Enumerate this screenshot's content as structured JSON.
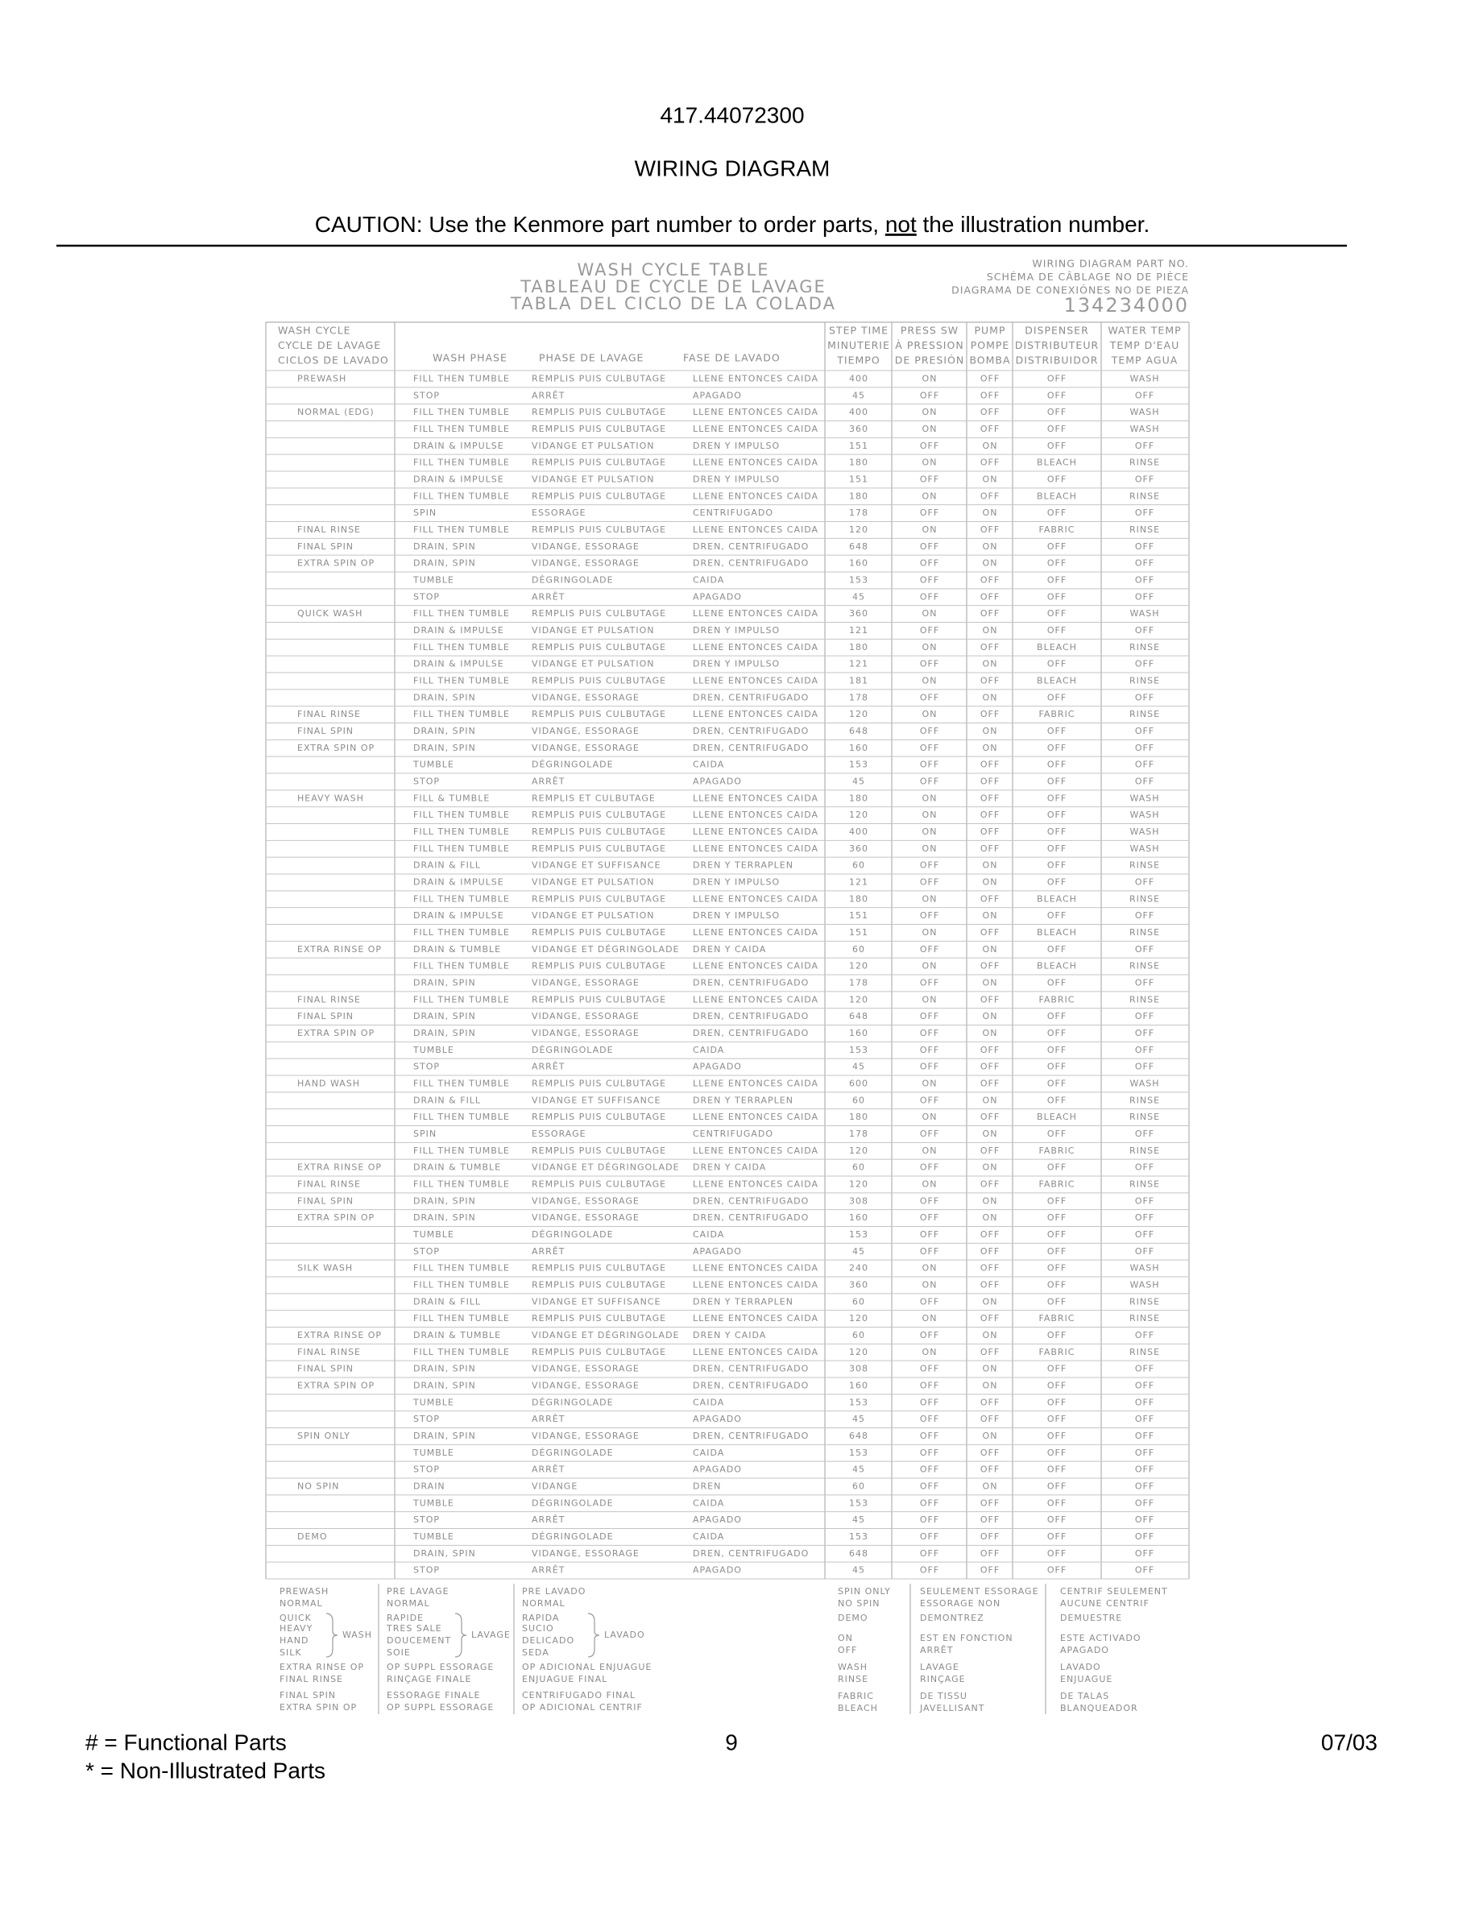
{
  "header": {
    "model": "417.44072300",
    "title": "WIRING DIAGRAM",
    "caution_before": "CAUTION: Use the Kenmore part number to order parts, ",
    "caution_emphasis": "not",
    "caution_after": " the illustration number."
  },
  "table_title": [
    "WASH CYCLE TABLE",
    "TABLEAU DE CYCLE DE LAVAGE",
    "TABLA DEL CICLO DE LA COLADA"
  ],
  "part_number": {
    "labels": [
      "WIRING DIAGRAM PART NO.",
      "SCHÉMA DE CÂBLAGE NO DE PIÈCE",
      "DIAGRAMA DE CONEXIÓNES NO DE PIEZA"
    ],
    "number": "134234000"
  },
  "table": {
    "columns": [
      [
        "WASH CYCLE",
        "CYCLE DE LAVAGE",
        "CICLOS DE LAVADO"
      ],
      [
        "WASH PHASE"
      ],
      [
        "PHASE DE LAVAGE"
      ],
      [
        "FASE DE LAVADO"
      ],
      [
        "STEP TIME",
        "MINUTERIE",
        "TIEMPO"
      ],
      [
        "PRESS SW",
        "À PRESSION",
        "DE PRESIÓN"
      ],
      [
        "PUMP",
        "POMPE",
        "BOMBA"
      ],
      [
        "DISPENSER",
        "DISTRIBUTEUR",
        "DISTRIBUIDOR"
      ],
      [
        "WATER TEMP",
        "TEMP D'EAU",
        "TEMP AGUA"
      ]
    ],
    "rows": [
      [
        "PREWASH",
        "FILL THEN TUMBLE",
        "REMPLIS PUIS CULBUTAGE",
        "LLENE ENTONCES CAIDA",
        400,
        "ON",
        "OFF",
        "OFF",
        "WASH"
      ],
      [
        null,
        "STOP",
        "ARRÊT",
        "APAGADO",
        45,
        "OFF",
        "OFF",
        "OFF",
        "OFF"
      ],
      [
        "NORMAL (EDG)",
        "FILL THEN TUMBLE",
        "REMPLIS PUIS CULBUTAGE",
        "LLENE ENTONCES CAIDA",
        400,
        "ON",
        "OFF",
        "OFF",
        "WASH"
      ],
      [
        null,
        "FILL THEN TUMBLE",
        "REMPLIS PUIS CULBUTAGE",
        "LLENE ENTONCES CAIDA",
        360,
        "ON",
        "OFF",
        "OFF",
        "WASH"
      ],
      [
        null,
        "DRAIN & IMPULSE",
        "VIDANGE ET PULSATION",
        "DREN Y IMPULSO",
        151,
        "OFF",
        "ON",
        "OFF",
        "OFF"
      ],
      [
        null,
        "FILL THEN TUMBLE",
        "REMPLIS PUIS CULBUTAGE",
        "LLENE ENTONCES CAIDA",
        180,
        "ON",
        "OFF",
        "BLEACH",
        "RINSE"
      ],
      [
        null,
        "DRAIN & IMPULSE",
        "VIDANGE ET PULSATION",
        "DREN Y IMPULSO",
        151,
        "OFF",
        "ON",
        "OFF",
        "OFF"
      ],
      [
        null,
        "FILL THEN TUMBLE",
        "REMPLIS PUIS CULBUTAGE",
        "LLENE ENTONCES CAIDA",
        180,
        "ON",
        "OFF",
        "BLEACH",
        "RINSE"
      ],
      [
        null,
        "SPIN",
        "ESSORAGE",
        "CENTRIFUGADO",
        178,
        "OFF",
        "ON",
        "OFF",
        "OFF"
      ],
      [
        "FINAL RINSE",
        "FILL THEN TUMBLE",
        "REMPLIS PUIS CULBUTAGE",
        "LLENE ENTONCES CAIDA",
        120,
        "ON",
        "OFF",
        "FABRIC",
        "RINSE"
      ],
      [
        "FINAL SPIN",
        "DRAIN, SPIN",
        "VIDANGE, ESSORAGE",
        "DREN, CENTRIFUGADO",
        648,
        "OFF",
        "ON",
        "OFF",
        "OFF"
      ],
      [
        "EXTRA SPIN OP",
        "DRAIN, SPIN",
        "VIDANGE, ESSORAGE",
        "DREN, CENTRIFUGADO",
        160,
        "OFF",
        "ON",
        "OFF",
        "OFF"
      ],
      [
        null,
        "TUMBLE",
        "DÉGRINGOLADE",
        "CAIDA",
        153,
        "OFF",
        "OFF",
        "OFF",
        "OFF"
      ],
      [
        null,
        "STOP",
        "ARRÊT",
        "APAGADO",
        45,
        "OFF",
        "OFF",
        "OFF",
        "OFF"
      ],
      [
        "QUICK WASH",
        "FILL THEN TUMBLE",
        "REMPLIS PUIS CULBUTAGE",
        "LLENE ENTONCES CAIDA",
        360,
        "ON",
        "OFF",
        "OFF",
        "WASH"
      ],
      [
        null,
        "DRAIN & IMPULSE",
        "VIDANGE ET PULSATION",
        "DREN Y IMPULSO",
        121,
        "OFF",
        "ON",
        "OFF",
        "OFF"
      ],
      [
        null,
        "FILL THEN TUMBLE",
        "REMPLIS PUIS CULBUTAGE",
        "LLENE ENTONCES CAIDA",
        180,
        "ON",
        "OFF",
        "BLEACH",
        "RINSE"
      ],
      [
        null,
        "DRAIN & IMPULSE",
        "VIDANGE ET PULSATION",
        "DREN Y IMPULSO",
        121,
        "OFF",
        "ON",
        "OFF",
        "OFF"
      ],
      [
        null,
        "FILL THEN TUMBLE",
        "REMPLIS PUIS CULBUTAGE",
        "LLENE ENTONCES CAIDA",
        181,
        "ON",
        "OFF",
        "BLEACH",
        "RINSE"
      ],
      [
        null,
        "DRAIN, SPIN",
        "VIDANGE, ESSORAGE",
        "DREN, CENTRIFUGADO",
        178,
        "OFF",
        "ON",
        "OFF",
        "OFF"
      ],
      [
        "FINAL RINSE",
        "FILL THEN TUMBLE",
        "REMPLIS PUIS CULBUTAGE",
        "LLENE ENTONCES CAIDA",
        120,
        "ON",
        "OFF",
        "FABRIC",
        "RINSE"
      ],
      [
        "FINAL SPIN",
        "DRAIN, SPIN",
        "VIDANGE, ESSORAGE",
        "DREN, CENTRIFUGADO",
        648,
        "OFF",
        "ON",
        "OFF",
        "OFF"
      ],
      [
        "EXTRA SPIN OP",
        "DRAIN, SPIN",
        "VIDANGE, ESSORAGE",
        "DREN, CENTRIFUGADO",
        160,
        "OFF",
        "ON",
        "OFF",
        "OFF"
      ],
      [
        null,
        "TUMBLE",
        "DÉGRINGOLADE",
        "CAIDA",
        153,
        "OFF",
        "OFF",
        "OFF",
        "OFF"
      ],
      [
        null,
        "STOP",
        "ARRÊT",
        "APAGADO",
        45,
        "OFF",
        "OFF",
        "OFF",
        "OFF"
      ],
      [
        "HEAVY WASH",
        "FILL & TUMBLE",
        "REMPLIS ET CULBUTAGE",
        "LLENE ENTONCES CAIDA",
        180,
        "ON",
        "OFF",
        "OFF",
        "WASH"
      ],
      [
        null,
        "FILL THEN TUMBLE",
        "REMPLIS PUIS CULBUTAGE",
        "LLENE ENTONCES CAIDA",
        120,
        "ON",
        "OFF",
        "OFF",
        "WASH"
      ],
      [
        null,
        "FILL THEN TUMBLE",
        "REMPLIS PUIS CULBUTAGE",
        "LLENE ENTONCES CAIDA",
        400,
        "ON",
        "OFF",
        "OFF",
        "WASH"
      ],
      [
        null,
        "FILL THEN TUMBLE",
        "REMPLIS PUIS CULBUTAGE",
        "LLENE ENTONCES CAIDA",
        360,
        "ON",
        "OFF",
        "OFF",
        "WASH"
      ],
      [
        null,
        "DRAIN & FILL",
        "VIDANGE ET SUFFISANCE",
        "DREN Y TERRAPLEN",
        60,
        "OFF",
        "ON",
        "OFF",
        "RINSE"
      ],
      [
        null,
        "DRAIN & IMPULSE",
        "VIDANGE ET PULSATION",
        "DREN Y IMPULSO",
        121,
        "OFF",
        "ON",
        "OFF",
        "OFF"
      ],
      [
        null,
        "FILL THEN TUMBLE",
        "REMPLIS PUIS CULBUTAGE",
        "LLENE ENTONCES CAIDA",
        180,
        "ON",
        "OFF",
        "BLEACH",
        "RINSE"
      ],
      [
        null,
        "DRAIN & IMPULSE",
        "VIDANGE ET PULSATION",
        "DREN Y IMPULSO",
        151,
        "OFF",
        "ON",
        "OFF",
        "OFF"
      ],
      [
        null,
        "FILL THEN TUMBLE",
        "REMPLIS PUIS CULBUTAGE",
        "LLENE ENTONCES CAIDA",
        151,
        "ON",
        "OFF",
        "BLEACH",
        "RINSE"
      ],
      [
        "EXTRA RINSE OP",
        "DRAIN & TUMBLE",
        "VIDANGE ET DÉGRINGOLADE",
        "DREN Y CAIDA",
        60,
        "OFF",
        "ON",
        "OFF",
        "OFF"
      ],
      [
        null,
        "FILL THEN TUMBLE",
        "REMPLIS PUIS CULBUTAGE",
        "LLENE ENTONCES CAIDA",
        120,
        "ON",
        "OFF",
        "BLEACH",
        "RINSE"
      ],
      [
        null,
        "DRAIN, SPIN",
        "VIDANGE, ESSORAGE",
        "DREN, CENTRIFUGADO",
        178,
        "OFF",
        "ON",
        "OFF",
        "OFF"
      ],
      [
        "FINAL RINSE",
        "FILL THEN TUMBLE",
        "REMPLIS PUIS CULBUTAGE",
        "LLENE ENTONCES CAIDA",
        120,
        "ON",
        "OFF",
        "FABRIC",
        "RINSE"
      ],
      [
        "FINAL SPIN",
        "DRAIN, SPIN",
        "VIDANGE, ESSORAGE",
        "DREN, CENTRIFUGADO",
        648,
        "OFF",
        "ON",
        "OFF",
        "OFF"
      ],
      [
        "EXTRA SPIN OP",
        "DRAIN, SPIN",
        "VIDANGE, ESSORAGE",
        "DREN, CENTRIFUGADO",
        160,
        "OFF",
        "ON",
        "OFF",
        "OFF"
      ],
      [
        null,
        "TUMBLE",
        "DÉGRINGOLADE",
        "CAIDA",
        153,
        "OFF",
        "OFF",
        "OFF",
        "OFF"
      ],
      [
        null,
        "STOP",
        "ARRÊT",
        "APAGADO",
        45,
        "OFF",
        "OFF",
        "OFF",
        "OFF"
      ],
      [
        "HAND WASH",
        "FILL THEN TUMBLE",
        "REMPLIS PUIS CULBUTAGE",
        "LLENE ENTONCES CAIDA",
        600,
        "ON",
        "OFF",
        "OFF",
        "WASH"
      ],
      [
        null,
        "DRAIN & FILL",
        "VIDANGE ET SUFFISANCE",
        "DREN Y TERRAPLEN",
        60,
        "OFF",
        "ON",
        "OFF",
        "RINSE"
      ],
      [
        null,
        "FILL THEN TUMBLE",
        "REMPLIS PUIS CULBUTAGE",
        "LLENE ENTONCES CAIDA",
        180,
        "ON",
        "OFF",
        "BLEACH",
        "RINSE"
      ],
      [
        null,
        "SPIN",
        "ESSORAGE",
        "CENTRIFUGADO",
        178,
        "OFF",
        "ON",
        "OFF",
        "OFF"
      ],
      [
        null,
        "FILL THEN TUMBLE",
        "REMPLIS PUIS CULBUTAGE",
        "LLENE ENTONCES CAIDA",
        120,
        "ON",
        "OFF",
        "FABRIC",
        "RINSE"
      ],
      [
        "EXTRA RINSE OP",
        "DRAIN & TUMBLE",
        "VIDANGE ET DÉGRINGOLADE",
        "DREN Y CAIDA",
        60,
        "OFF",
        "ON",
        "OFF",
        "OFF"
      ],
      [
        "FINAL RINSE",
        "FILL THEN TUMBLE",
        "REMPLIS PUIS CULBUTAGE",
        "LLENE ENTONCES CAIDA",
        120,
        "ON",
        "OFF",
        "FABRIC",
        "RINSE"
      ],
      [
        "FINAL SPIN",
        "DRAIN, SPIN",
        "VIDANGE, ESSORAGE",
        "DREN, CENTRIFUGADO",
        308,
        "OFF",
        "ON",
        "OFF",
        "OFF"
      ],
      [
        "EXTRA SPIN OP",
        "DRAIN, SPIN",
        "VIDANGE, ESSORAGE",
        "DREN, CENTRIFUGADO",
        160,
        "OFF",
        "ON",
        "OFF",
        "OFF"
      ],
      [
        null,
        "TUMBLE",
        "DÉGRINGOLADE",
        "CAIDA",
        153,
        "OFF",
        "OFF",
        "OFF",
        "OFF"
      ],
      [
        null,
        "STOP",
        "ARRÊT",
        "APAGADO",
        45,
        "OFF",
        "OFF",
        "OFF",
        "OFF"
      ],
      [
        "SILK WASH",
        "FILL THEN TUMBLE",
        "REMPLIS PUIS CULBUTAGE",
        "LLENE ENTONCES CAIDA",
        240,
        "ON",
        "OFF",
        "OFF",
        "WASH"
      ],
      [
        null,
        "FILL THEN TUMBLE",
        "REMPLIS PUIS CULBUTAGE",
        "LLENE ENTONCES CAIDA",
        360,
        "ON",
        "OFF",
        "OFF",
        "WASH"
      ],
      [
        null,
        "DRAIN & FILL",
        "VIDANGE ET SUFFISANCE",
        "DREN Y TERRAPLEN",
        60,
        "OFF",
        "ON",
        "OFF",
        "RINSE"
      ],
      [
        null,
        "FILL THEN TUMBLE",
        "REMPLIS PUIS CULBUTAGE",
        "LLENE ENTONCES CAIDA",
        120,
        "ON",
        "OFF",
        "FABRIC",
        "RINSE"
      ],
      [
        "EXTRA RINSE OP",
        "DRAIN & TUMBLE",
        "VIDANGE ET DÉGRINGOLADE",
        "DREN Y CAIDA",
        60,
        "OFF",
        "ON",
        "OFF",
        "OFF"
      ],
      [
        "FINAL RINSE",
        "FILL THEN TUMBLE",
        "REMPLIS PUIS CULBUTAGE",
        "LLENE ENTONCES CAIDA",
        120,
        "ON",
        "OFF",
        "FABRIC",
        "RINSE"
      ],
      [
        "FINAL SPIN",
        "DRAIN, SPIN",
        "VIDANGE, ESSORAGE",
        "DREN, CENTRIFUGADO",
        308,
        "OFF",
        "ON",
        "OFF",
        "OFF"
      ],
      [
        "EXTRA SPIN OP",
        "DRAIN, SPIN",
        "VIDANGE, ESSORAGE",
        "DREN, CENTRIFUGADO",
        160,
        "OFF",
        "ON",
        "OFF",
        "OFF"
      ],
      [
        null,
        "TUMBLE",
        "DÉGRINGOLADE",
        "CAIDA",
        153,
        "OFF",
        "OFF",
        "OFF",
        "OFF"
      ],
      [
        null,
        "STOP",
        "ARRÊT",
        "APAGADO",
        45,
        "OFF",
        "OFF",
        "OFF",
        "OFF"
      ],
      [
        "SPIN ONLY",
        "DRAIN, SPIN",
        "VIDANGE, ESSORAGE",
        "DREN, CENTRIFUGADO",
        648,
        "OFF",
        "ON",
        "OFF",
        "OFF"
      ],
      [
        null,
        "TUMBLE",
        "DÉGRINGOLADE",
        "CAIDA",
        153,
        "OFF",
        "OFF",
        "OFF",
        "OFF"
      ],
      [
        null,
        "STOP",
        "ARRÊT",
        "APAGADO",
        45,
        "OFF",
        "OFF",
        "OFF",
        "OFF"
      ],
      [
        "NO SPIN",
        "DRAIN",
        "VIDANGE",
        "DREN",
        60,
        "OFF",
        "ON",
        "OFF",
        "OFF"
      ],
      [
        null,
        "TUMBLE",
        "DÉGRINGOLADE",
        "CAIDA",
        153,
        "OFF",
        "OFF",
        "OFF",
        "OFF"
      ],
      [
        null,
        "STOP",
        "ARRÊT",
        "APAGADO",
        45,
        "OFF",
        "OFF",
        "OFF",
        "OFF"
      ],
      [
        "DEMO",
        "TUMBLE",
        "DÉGRINGOLADE",
        "CAIDA",
        153,
        "OFF",
        "OFF",
        "OFF",
        "OFF"
      ],
      [
        null,
        "DRAIN, SPIN",
        "VIDANGE, ESSORAGE",
        "DREN, CENTRIFUGADO",
        648,
        "OFF",
        "OFF",
        "OFF",
        "OFF"
      ],
      [
        null,
        "STOP",
        "ARRÊT",
        "APAGADO",
        45,
        "OFF",
        "OFF",
        "OFF",
        "OFF"
      ]
    ]
  },
  "legend": {
    "cycles": {
      "en": [
        "PREWASH",
        "NORMAL",
        "QUICK",
        "HEAVY",
        "HAND",
        "SILK",
        "EXTRA RINSE OP",
        "FINAL RINSE",
        "FINAL SPIN",
        "EXTRA SPIN OP"
      ],
      "fr": [
        "PRE LAVAGE",
        "NORMAL",
        "RAPIDE",
        "TRES SALE",
        "DOUCEMENT",
        "SOIE",
        "OP SUPPL ESSORAGE",
        "RINÇAGE FINALE",
        "ESSORAGE FINALE",
        "OP SUPPL ESSORAGE"
      ],
      "es": [
        "PRE LAVADO",
        "NORMAL",
        "RAPIDA",
        "SUCIO",
        "DELICADO",
        "SEDA",
        "OP ADICIONAL ENJUAGUE",
        "ENJUAGUE FINAL",
        "CENTRIFUGADO FINAL",
        "OP ADICIONAL CENTRIF"
      ]
    },
    "brace": {
      "en": "WASH",
      "fr": "LAVAGE",
      "es": "LAVADO"
    },
    "states": {
      "en": [
        "SPIN ONLY",
        "NO SPIN",
        "DEMO",
        "ON",
        "OFF",
        "WASH",
        "RINSE",
        "FABRIC",
        "BLEACH"
      ],
      "fr": [
        "SEULEMENT ESSORAGE",
        "ESSORAGE NON",
        "DEMONTREZ",
        "EST EN FONCTION",
        "ARRÊT",
        "LAVAGE",
        "RINÇAGE",
        "DE TISSU",
        "JAVELLISANT"
      ],
      "es": [
        "CENTRIF SEULEMENT",
        "AUCUNE CENTRIF",
        "DEMUESTRE",
        "ESTE ACTIVADO",
        "APAGADO",
        "LAVADO",
        "ENJUAGUE",
        "DE TALAS",
        "BLANQUEADOR"
      ]
    }
  },
  "footer": {
    "notes": [
      "#  =  Functional Parts",
      "*   =  Non-Illustrated Parts"
    ],
    "page": "9",
    "date": "07/03"
  }
}
